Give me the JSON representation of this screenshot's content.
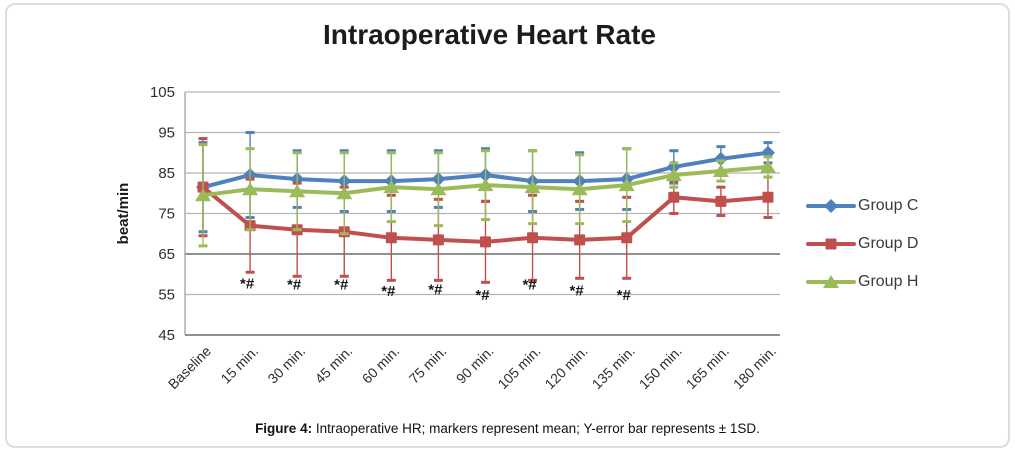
{
  "figure": {
    "caption_label": "Figure 4:",
    "caption_text": " Intraoperative HR; markers represent mean; Y-error bar represents ± 1SD."
  },
  "chart_data": {
    "type": "line",
    "title": "Intraoperative Heart Rate",
    "ylabel": "beat/min",
    "xlabel": "",
    "ylim": [
      45,
      105
    ],
    "yticks": [
      105,
      95,
      85,
      75,
      65,
      55,
      45
    ],
    "grid": true,
    "emphasized_gridlines": [
      65,
      45
    ],
    "legend_position": "right",
    "legend_entries": [
      "Group C",
      "Group D",
      "Group H"
    ],
    "categories": [
      "Baseline",
      "15 min.",
      "30 min.",
      "45 min.",
      "60 min.",
      "75 min.",
      "90 min.",
      "105 min.",
      "120 min.",
      "135 min.",
      "150 min.",
      "165 min.",
      "180 min."
    ],
    "series": [
      {
        "name": "Group C",
        "color": "#4F81BD",
        "marker": "diamond",
        "values": [
          81.5,
          84.5,
          83.5,
          83,
          83,
          83.5,
          84.5,
          83,
          83,
          83.5,
          86.5,
          88.5,
          90
        ],
        "sd": [
          11,
          10.5,
          7,
          7.5,
          7.5,
          7,
          6.5,
          7.5,
          7,
          7.5,
          4,
          3,
          2.5
        ]
      },
      {
        "name": "Group D",
        "color": "#C0504D",
        "marker": "square",
        "values": [
          81.5,
          72,
          71,
          70.5,
          69,
          68.5,
          68,
          69,
          68.5,
          69,
          79,
          78,
          79
        ],
        "sd": [
          12,
          11.5,
          11.5,
          11,
          10.5,
          10,
          10,
          10.5,
          9.5,
          10,
          4,
          3.5,
          5
        ]
      },
      {
        "name": "Group H",
        "color": "#9BBB59",
        "marker": "triangle",
        "values": [
          79.5,
          81,
          80.5,
          80,
          81.5,
          81,
          82,
          81.5,
          81,
          82,
          84.5,
          85.5,
          86.5
        ],
        "sd": [
          12.5,
          10,
          9.5,
          10,
          8.5,
          9,
          8.5,
          9,
          8.5,
          9,
          3,
          2.5,
          2.5
        ]
      }
    ],
    "annotations": [
      {
        "category_index": 1,
        "label": "*#",
        "value": 56.5
      },
      {
        "category_index": 2,
        "label": "*#",
        "value": 56.2
      },
      {
        "category_index": 3,
        "label": "*#",
        "value": 56.2
      },
      {
        "category_index": 4,
        "label": "*#",
        "value": 54.6
      },
      {
        "category_index": 5,
        "label": "*#",
        "value": 55.0
      },
      {
        "category_index": 6,
        "label": "*#",
        "value": 53.7
      },
      {
        "category_index": 7,
        "label": "*#",
        "value": 56.2
      },
      {
        "category_index": 8,
        "label": "*#",
        "value": 54.8
      },
      {
        "category_index": 9,
        "label": "*#",
        "value": 53.7
      }
    ],
    "colors": {
      "grid": "#b5b5b5",
      "grid_emphasized": "#8f8f8f",
      "axis": "#9a9a9a",
      "tick_text": "#2e2e2e",
      "annotation_text": "#161616"
    }
  }
}
